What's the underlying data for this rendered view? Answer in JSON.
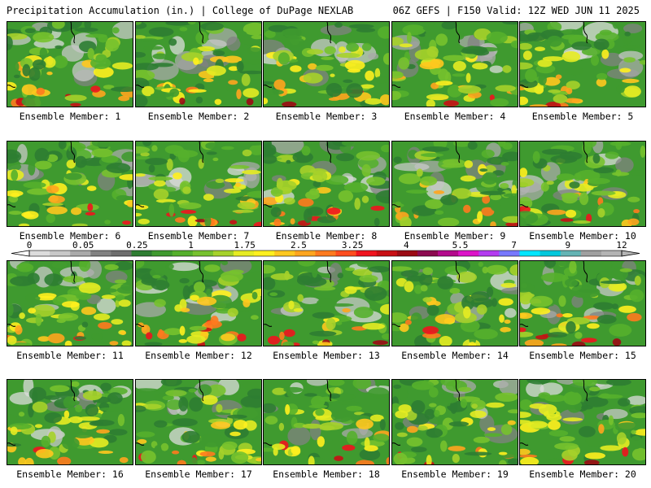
{
  "header": {
    "left": "Precipitation Accumulation (in.) | College of DuPage NEXLAB",
    "right": "06Z GEFS | F150 Valid: 12Z WED JUN 11 2025"
  },
  "panels": [
    {
      "caption": "Ensemble Member: 1"
    },
    {
      "caption": "Ensemble Member: 2"
    },
    {
      "caption": "Ensemble Member: 3"
    },
    {
      "caption": "Ensemble Member: 4"
    },
    {
      "caption": "Ensemble Member: 5"
    },
    {
      "caption": "Ensemble Member: 6"
    },
    {
      "caption": "Ensemble Member: 7"
    },
    {
      "caption": "Ensemble Member: 8"
    },
    {
      "caption": "Ensemble Member: 9"
    },
    {
      "caption": "Ensemble Member: 10"
    },
    {
      "caption": "Ensemble Member: 11"
    },
    {
      "caption": "Ensemble Member: 12"
    },
    {
      "caption": "Ensemble Member: 13"
    },
    {
      "caption": "Ensemble Member: 14"
    },
    {
      "caption": "Ensemble Member: 15"
    },
    {
      "caption": "Ensemble Member: 16"
    },
    {
      "caption": "Ensemble Member: 17"
    },
    {
      "caption": "Ensemble Member: 18"
    },
    {
      "caption": "Ensemble Member: 19"
    },
    {
      "caption": "Ensemble Member: 20"
    }
  ],
  "colorbar": {
    "labels": [
      "0",
      "0.05",
      "0.25",
      "1",
      "1.75",
      "2.5",
      "3.25",
      "4",
      "5.5",
      "7",
      "9",
      "12"
    ],
    "colors": [
      "#dcdcdc",
      "#c8c8c8",
      "#aaaaaa",
      "#828282",
      "#6e6e6e",
      "#2e7d32",
      "#3f9a2f",
      "#55b02c",
      "#77c22e",
      "#a6d22a",
      "#e6ec22",
      "#fff01e",
      "#ffc81e",
      "#ffa51e",
      "#ff7a1e",
      "#ff4d1e",
      "#f0141e",
      "#c80f14",
      "#9b0a14",
      "#8c0a50",
      "#b40a8c",
      "#dc14c8",
      "#b43cf0",
      "#7878ff",
      "#00e6ff",
      "#00c8dc",
      "#64b4b4",
      "#a0a0a0",
      "#b4b4b4"
    ]
  }
}
